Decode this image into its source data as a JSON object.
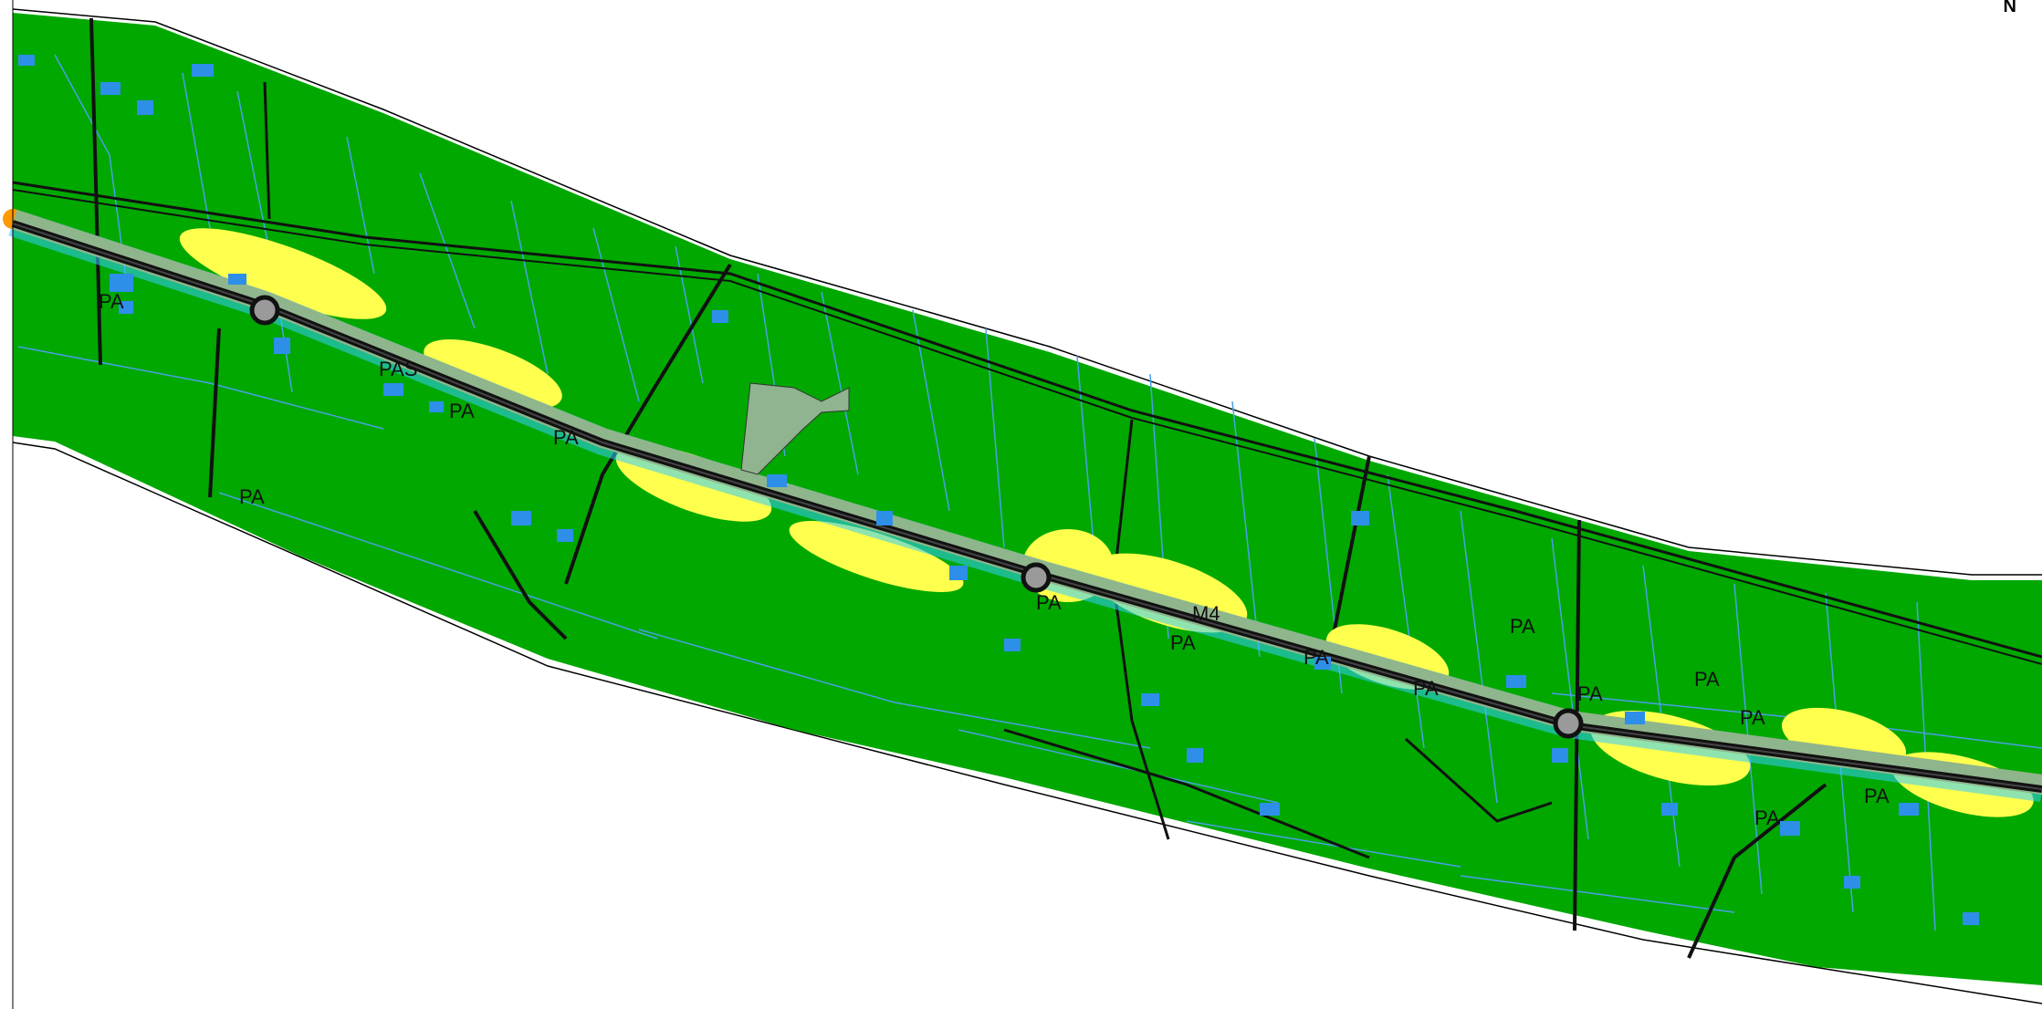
{
  "north_label": "N",
  "labels": [
    {
      "id": "pa-1",
      "text": "PA"
    },
    {
      "id": "pa-2",
      "text": "PA"
    },
    {
      "id": "pas",
      "text": "PAS"
    },
    {
      "id": "pa-3",
      "text": "PA"
    },
    {
      "id": "pa-4",
      "text": "PA"
    },
    {
      "id": "pa-5",
      "text": "PA"
    },
    {
      "id": "m4",
      "text": "M4"
    },
    {
      "id": "pa-6",
      "text": "PA"
    },
    {
      "id": "pa-7",
      "text": "PA"
    },
    {
      "id": "pa-8",
      "text": "PA"
    },
    {
      "id": "pa-9",
      "text": "PA"
    },
    {
      "id": "pa-10",
      "text": "PA"
    },
    {
      "id": "pa-11",
      "text": "PA"
    },
    {
      "id": "pa-12",
      "text": "PA"
    },
    {
      "id": "pa-13",
      "text": "PA"
    },
    {
      "id": "pa-14",
      "text": "PA"
    }
  ],
  "colors": {
    "band_green": "#00a800",
    "band_yellow": "#ffff4d",
    "band_orange": "#ff9900",
    "road_cyan": "#33ccff",
    "building_blue": "#2e8fe8",
    "parcel_line": "#4aa0e6",
    "road_black": "#111111",
    "contour_white": "#e8f3ea",
    "gray_area": "#8fb48f",
    "roundabout": "#9a9a9a",
    "outline": "#000000"
  }
}
